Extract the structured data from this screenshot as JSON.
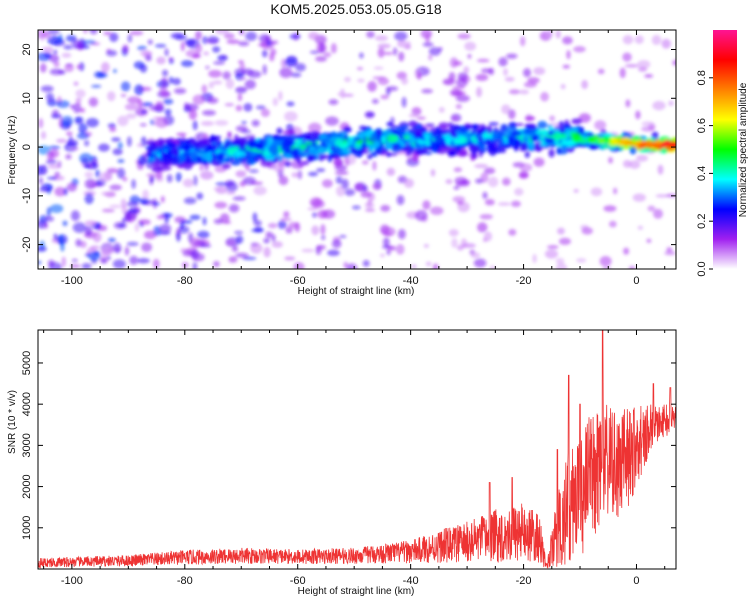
{
  "title": "KOM5.2025.053.05.05.G18",
  "chart_data": [
    {
      "type": "heatmap",
      "xlabel": "Height of straight line (km)",
      "ylabel": "Frequency (Hz)",
      "xlim": [
        -106,
        7
      ],
      "ylim": [
        -25,
        24
      ],
      "xticks": [
        -100,
        -80,
        -60,
        -40,
        -20,
        0
      ],
      "yticks": [
        -20,
        -10,
        0,
        10,
        20
      ],
      "colorbar": {
        "label": "Normalized spectral amplitude",
        "range": [
          0.0,
          1.0
        ],
        "ticks": [
          0.0,
          0.2,
          0.4,
          0.6,
          0.8
        ],
        "tick_labels": [
          "0.0",
          "0.2",
          "0.4",
          "0.6",
          "0.8"
        ],
        "colormap": [
          "#ffffff",
          "#a020f0",
          "#0000ff",
          "#00ffff",
          "#00ff00",
          "#ffff00",
          "#ff8000",
          "#ff0000",
          "#ff1493"
        ]
      },
      "ridge": [
        {
          "x": -83,
          "freq": -1.5,
          "amp": 0.35
        },
        {
          "x": -75,
          "freq": -1.0,
          "amp": 0.4
        },
        {
          "x": -65,
          "freq": -0.5,
          "amp": 0.45
        },
        {
          "x": -55,
          "freq": 0.5,
          "amp": 0.45
        },
        {
          "x": -45,
          "freq": 1.5,
          "amp": 0.45
        },
        {
          "x": -35,
          "freq": 1.5,
          "amp": 0.4
        },
        {
          "x": -25,
          "freq": 2.0,
          "amp": 0.4
        },
        {
          "x": -15,
          "freq": 2.0,
          "amp": 0.45
        },
        {
          "x": -8,
          "freq": 1.5,
          "amp": 0.5
        },
        {
          "x": -3,
          "freq": 1.0,
          "amp": 0.65
        },
        {
          "x": 2,
          "freq": 0.5,
          "amp": 0.8
        },
        {
          "x": 5,
          "freq": 0.5,
          "amp": 0.95
        }
      ],
      "grid": false
    },
    {
      "type": "line",
      "xlabel": "Height of straight line (km)",
      "ylabel": "SNR (10 * v/v)",
      "xlim": [
        -106,
        7
      ],
      "ylim": [
        0,
        5800
      ],
      "xticks": [
        -100,
        -80,
        -60,
        -40,
        -20,
        0
      ],
      "yticks": [
        1000,
        2000,
        3000,
        4000,
        5000
      ],
      "series": [
        {
          "color": "#ee3333",
          "envelope": {
            "x": [
              -106,
              -100,
              -90,
              -80,
              -70,
              -60,
              -50,
              -40,
              -35,
              -30,
              -25,
              -20,
              -17,
              -16,
              -14,
              -12,
              -10,
              -8,
              -6,
              -4,
              -2,
              0,
              3,
              5,
              7
            ],
            "mean": [
              150,
              170,
              200,
              280,
              320,
              300,
              320,
              420,
              550,
              650,
              800,
              900,
              700,
              50,
              900,
              1500,
              1800,
              2200,
              2700,
              2400,
              2600,
              3000,
              3500,
              3600,
              3700
            ],
            "spread": [
              120,
              120,
              140,
              180,
              200,
              180,
              200,
              280,
              400,
              500,
              650,
              700,
              600,
              50,
              900,
              1400,
              1500,
              1600,
              1500,
              1400,
              1300,
              1000,
              500,
              400,
              400
            ]
          },
          "peaks": [
            {
              "x": -26,
              "y": 2100
            },
            {
              "x": -22,
              "y": 2220
            },
            {
              "x": -14,
              "y": 2900
            },
            {
              "x": -12,
              "y": 4700
            },
            {
              "x": -10,
              "y": 4000
            },
            {
              "x": -6,
              "y": 5800
            },
            {
              "x": 3,
              "y": 4500
            },
            {
              "x": 6,
              "y": 4400
            }
          ]
        }
      ],
      "grid": false
    }
  ]
}
